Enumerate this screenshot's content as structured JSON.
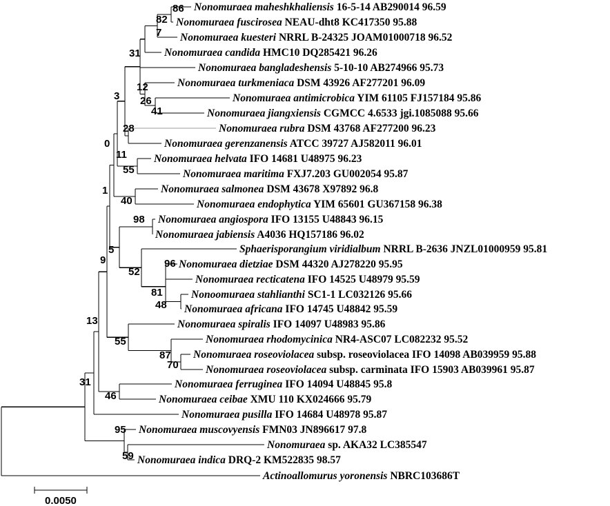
{
  "taxa": [
    {
      "species": "Nonomuraea maheshkhaliensis",
      "strain": "16-5-14 AB290014 96.59"
    },
    {
      "species": "Nonomuraea fuscirosea",
      "strain": "NEAU-dht8 KC417350 95.88"
    },
    {
      "species": "Nonomuraea kuesteri",
      "strain": "NRRL B-24325 JOAM01000718 96.52"
    },
    {
      "species": "Nonomuraea candida",
      "strain": "HMC10 DQ285421 96.26"
    },
    {
      "species": "Nonomuraea bangladeshensis",
      "strain": "5-10-10 AB274966 95.73"
    },
    {
      "species": "Nonomuraea turkmeniaca",
      "strain": "DSM 43926 AF277201 96.09"
    },
    {
      "species": "Nonomuraea antimicrobica",
      "strain": "YIM 61105 FJ157184 95.86"
    },
    {
      "species": "Nonomuraea jiangxiensis",
      "strain": "CGMCC 4.6533 jgi.1085088 95.66"
    },
    {
      "species": "Nonomuraea rubra",
      "strain": "DSM 43768 AF277200 96.23"
    },
    {
      "species": "Nonomuraea gerenzanensis",
      "strain": "ATCC 39727 AJ582011 96.01"
    },
    {
      "species": "Nonomuraea helvata",
      "strain": "IFO 14681 U48975 96.23"
    },
    {
      "species": "Nonomuraea maritima",
      "strain": "FXJ7.203 GU002054 95.87"
    },
    {
      "species": "Nonomuraea salmonea",
      "strain": "DSM 43678 X97892 96.8"
    },
    {
      "species": "Nonomuraea endophytica",
      "strain": "YIM 65601 GU367158 96.38"
    },
    {
      "species": "Nonomuraea angiospora",
      "strain": "IFO 13155 U48843 96.15"
    },
    {
      "species": "Nonomuraea jabiensis",
      "strain": "A4036 HQ157186 96.02"
    },
    {
      "species": "Sphaerisporangium viridialbum",
      "strain": "NRRL B-2636 JNZL01000959 95.81"
    },
    {
      "species": "Nonomuraea dietziae",
      "strain": "DSM 44320 AJ278220 95.95"
    },
    {
      "species": "Nonomuraea recticatena",
      "strain": "IFO 14525 U48979 95.59"
    },
    {
      "species": "Nonoomuraea stahlianthi",
      "strain": "SC1-1 LC032126 95.66"
    },
    {
      "species": "Nonomuraea africana",
      "strain": "IFO 14745 U48842 95.59"
    },
    {
      "species": "Nonomuraea spiralis",
      "strain": "IFO 14097 U48983 95.86"
    },
    {
      "species": "Nonomuraea rhodomycinica",
      "strain": "NR4-ASC07 LC082232 95.52"
    },
    {
      "species": "Nonomuraea roseoviolacea",
      "strain": "subsp. roseoviolacea IFO 14098 AB039959 95.88"
    },
    {
      "species": "Nonomuraea roseoviolacea",
      "strain": "subsp. carminata IFO 15903 AB039961 95.87"
    },
    {
      "species": "Nonomuraea ferruginea",
      "strain": "IFO 14094 U48845 95.8"
    },
    {
      "species": "Nonomuraea ceibae",
      "strain": "XMU 110 KX024666 95.79"
    },
    {
      "species": "Nonomuraea pusilla",
      "strain": "IFO 14684 U48978 95.87"
    },
    {
      "species": "Nonomuraea muscovyensis",
      "strain": "FMN03 JN896617 97.8"
    },
    {
      "species": "Nonomuraea",
      "strain": "sp. AKA32 LC385547"
    },
    {
      "species": "Nonomuraea indica",
      "strain": "DRQ-2 KM522835 98.57"
    },
    {
      "species": "Actinoallomurus yoronensis",
      "strain": "NBRC103686T"
    }
  ],
  "bootstrap": [
    "86",
    "82",
    "7",
    "31",
    "12",
    "26",
    "41",
    "3",
    "28",
    "0",
    "11",
    "55",
    "1",
    "40",
    "98",
    "5",
    "96",
    "52",
    "81",
    "48",
    "9",
    "55",
    "87",
    "70",
    "13",
    "46",
    "31",
    "95",
    "59"
  ],
  "scale_bar": {
    "label": "0.0050"
  }
}
